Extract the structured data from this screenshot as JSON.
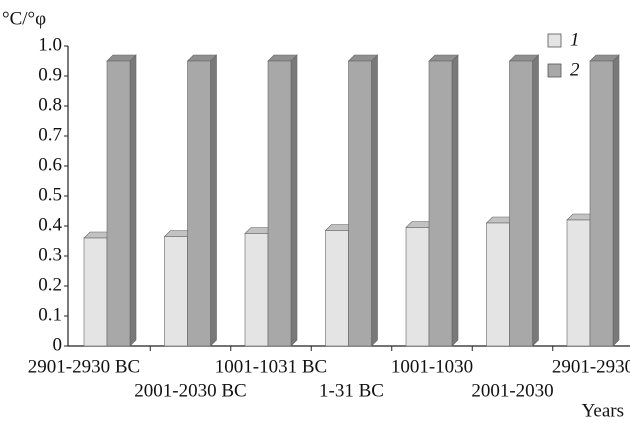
{
  "chart_data": {
    "type": "bar3d",
    "y_label": "°C/°φ",
    "x_label": "Years",
    "categories": [
      "2901-2930 BC",
      "2001-2030 BC",
      "1001-1031 BC",
      "1-31 BC",
      "1001-1030",
      "2001-2030",
      "2901-2930"
    ],
    "series": [
      {
        "name": "1",
        "color": "#e4e4e4",
        "values": [
          0.36,
          0.365,
          0.375,
          0.385,
          0.395,
          0.41,
          0.42
        ]
      },
      {
        "name": "2",
        "color": "#a8a8a8",
        "values": [
          0.95,
          0.95,
          0.95,
          0.95,
          0.95,
          0.95,
          0.95
        ]
      }
    ],
    "ylim": [
      0,
      1
    ],
    "yticks": [
      0,
      0.1,
      0.2,
      0.3,
      0.4,
      0.5,
      0.6,
      0.7,
      0.8,
      0.9,
      {
        "value": 1,
        "label": "1.0"
      }
    ],
    "legend": "top-right"
  }
}
